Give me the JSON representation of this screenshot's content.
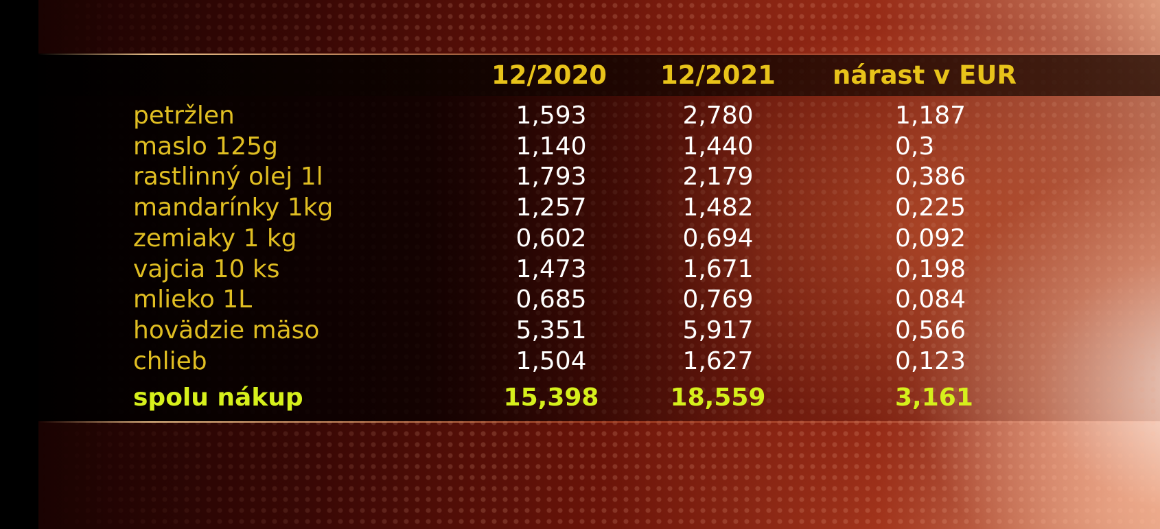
{
  "header": {
    "col1": "12/2020",
    "col2": "12/2021",
    "col3": "nárast v EUR"
  },
  "rows": [
    {
      "label": "petržlen",
      "v2020": "1,593",
      "v2021": "2,780",
      "increase": "1,187"
    },
    {
      "label": "maslo 125g",
      "v2020": "1,140",
      "v2021": "1,440",
      "increase": "0,3"
    },
    {
      "label": "rastlinný olej 1l",
      "v2020": "1,793",
      "v2021": "2,179",
      "increase": "0,386"
    },
    {
      "label": "mandarínky 1kg",
      "v2020": "1,257",
      "v2021": "1,482",
      "increase": "0,225"
    },
    {
      "label": "zemiaky 1 kg",
      "v2020": "0,602",
      "v2021": "0,694",
      "increase": "0,092"
    },
    {
      "label": "vajcia 10 ks",
      "v2020": "1,473",
      "v2021": "1,671",
      "increase": "0,198"
    },
    {
      "label": "mlieko  1L",
      "v2020": "0,685",
      "v2021": "0,769",
      "increase": "0,084"
    },
    {
      "label": "hovädzie mäso",
      "v2020": "5,351",
      "v2021": "5,917",
      "increase": "0,566"
    },
    {
      "label": "chlieb",
      "v2020": "1,504",
      "v2021": "1,627",
      "increase": "0,123"
    }
  ],
  "total": {
    "label": "spolu nákup",
    "v2020": "15,398",
    "v2021": "18,559",
    "increase": "3,161"
  },
  "colors": {
    "label": "#e0be22",
    "header": "#e8c31a",
    "total": "#d6f01c",
    "value": "#ffffff"
  },
  "chart_data": {
    "type": "table",
    "columns": [
      "",
      "12/2020",
      "12/2021",
      "nárast v EUR"
    ],
    "rows": [
      [
        "petržlen",
        1.593,
        2.78,
        1.187
      ],
      [
        "maslo 125g",
        1.14,
        1.44,
        0.3
      ],
      [
        "rastlinný olej 1l",
        1.793,
        2.179,
        0.386
      ],
      [
        "mandarínky 1kg",
        1.257,
        1.482,
        0.225
      ],
      [
        "zemiaky 1 kg",
        0.602,
        0.694,
        0.092
      ],
      [
        "vajcia 10 ks",
        1.473,
        1.671,
        0.198
      ],
      [
        "mlieko  1L",
        0.685,
        0.769,
        0.084
      ],
      [
        "hovädzie mäso",
        5.351,
        5.917,
        0.566
      ],
      [
        "chlieb",
        1.504,
        1.627,
        0.123
      ],
      [
        "spolu nákup",
        15.398,
        18.559,
        3.161
      ]
    ]
  }
}
